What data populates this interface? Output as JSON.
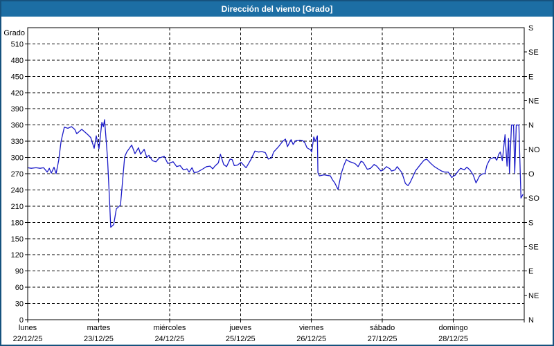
{
  "title": "Dirección del viento [Grado]",
  "colors": {
    "titlebar": "#1C6EA4",
    "window_border": "#16527E",
    "line": "#1A1AC8",
    "grid": "#000000",
    "background": "#FFFFFF",
    "title_text": "#FFFFFF",
    "label_text": "#000000"
  },
  "chart_data": {
    "type": "line",
    "title": "Dirección del viento [Grado]",
    "ylabel": "Grado",
    "ylim": [
      0,
      540
    ],
    "xlim_hours": [
      0,
      168
    ],
    "grid": "dashed",
    "legend": "none",
    "left_axis_ticks": [
      0,
      30,
      60,
      90,
      120,
      150,
      180,
      210,
      240,
      270,
      300,
      330,
      360,
      390,
      420,
      450,
      480,
      510
    ],
    "right_axis_labels": [
      {
        "value": 540,
        "label": "S"
      },
      {
        "value": 495,
        "label": "SE"
      },
      {
        "value": 450,
        "label": "E"
      },
      {
        "value": 405,
        "label": "NE"
      },
      {
        "value": 360,
        "label": "N"
      },
      {
        "value": 315,
        "label": "NO"
      },
      {
        "value": 270,
        "label": "O"
      },
      {
        "value": 225,
        "label": "SO"
      },
      {
        "value": 180,
        "label": "S"
      },
      {
        "value": 135,
        "label": "SE"
      },
      {
        "value": 90,
        "label": "E"
      },
      {
        "value": 45,
        "label": "NE"
      },
      {
        "value": 0,
        "label": "N"
      }
    ],
    "days": [
      {
        "name": "lunes",
        "date": "22/12/25"
      },
      {
        "name": "martes",
        "date": "23/12/25"
      },
      {
        "name": "miércoles",
        "date": "24/12/25"
      },
      {
        "name": "jueves",
        "date": "25/12/25"
      },
      {
        "name": "viernes",
        "date": "26/12/25"
      },
      {
        "name": "sábado",
        "date": "27/12/25"
      },
      {
        "name": "domingo",
        "date": "28/12/25"
      }
    ],
    "series": [
      {
        "name": "Dirección del viento",
        "color": "#1A1AC8",
        "points": [
          [
            0,
            281
          ],
          [
            1.2,
            280
          ],
          [
            2.8,
            281
          ],
          [
            4.2,
            280
          ],
          [
            5.4,
            281
          ],
          [
            6.6,
            273
          ],
          [
            7.3,
            280
          ],
          [
            8,
            271
          ],
          [
            8.9,
            282
          ],
          [
            9.6,
            270
          ],
          [
            10.5,
            295
          ],
          [
            11.3,
            330
          ],
          [
            12.4,
            356
          ],
          [
            13.6,
            354
          ],
          [
            14.8,
            357
          ],
          [
            15.9,
            352
          ],
          [
            16.6,
            344
          ],
          [
            18.3,
            352
          ],
          [
            20.2,
            343
          ],
          [
            21.3,
            337
          ],
          [
            22.5,
            317
          ],
          [
            23.2,
            340
          ],
          [
            24.1,
            316
          ],
          [
            25.1,
            365
          ],
          [
            25.6,
            357
          ],
          [
            26,
            370
          ],
          [
            27,
            300
          ],
          [
            27.7,
            220
          ],
          [
            28.1,
            171
          ],
          [
            29.1,
            176
          ],
          [
            30,
            205
          ],
          [
            31.4,
            212
          ],
          [
            32.8,
            301
          ],
          [
            33.5,
            310
          ],
          [
            35.2,
            323
          ],
          [
            36.3,
            307
          ],
          [
            37.5,
            318
          ],
          [
            38.2,
            306
          ],
          [
            39.4,
            315
          ],
          [
            40.3,
            300
          ],
          [
            41,
            304
          ],
          [
            42.2,
            294
          ],
          [
            43.4,
            292
          ],
          [
            44.5,
            299
          ],
          [
            46.2,
            302
          ],
          [
            47.4,
            289
          ],
          [
            48.1,
            290
          ],
          [
            49.2,
            292
          ],
          [
            50.4,
            283
          ],
          [
            51.6,
            285
          ],
          [
            52.7,
            277
          ],
          [
            53.9,
            279
          ],
          [
            54.6,
            273
          ],
          [
            55.6,
            281
          ],
          [
            56.3,
            272
          ],
          [
            57.4,
            273
          ],
          [
            59.3,
            279
          ],
          [
            60.5,
            283
          ],
          [
            61.7,
            284
          ],
          [
            62.6,
            279
          ],
          [
            63.3,
            284
          ],
          [
            64.5,
            290
          ],
          [
            65.2,
            306
          ],
          [
            66.3,
            287
          ],
          [
            67.3,
            283
          ],
          [
            68.5,
            297
          ],
          [
            69.2,
            296
          ],
          [
            69.9,
            285
          ],
          [
            71,
            286
          ],
          [
            72.2,
            291
          ],
          [
            73.2,
            285
          ],
          [
            73.9,
            281
          ],
          [
            75.5,
            296
          ],
          [
            76.9,
            312
          ],
          [
            78.1,
            310
          ],
          [
            79.2,
            311
          ],
          [
            80.4,
            309
          ],
          [
            81.4,
            297
          ],
          [
            82.5,
            299
          ],
          [
            83.2,
            310
          ],
          [
            84.9,
            320
          ],
          [
            86.3,
            330
          ],
          [
            87.2,
            334
          ],
          [
            87.9,
            320
          ],
          [
            89.1,
            333
          ],
          [
            89.8,
            324
          ],
          [
            90.7,
            331
          ],
          [
            92.1,
            332
          ],
          [
            93.1,
            331
          ],
          [
            93.8,
            327
          ],
          [
            94.5,
            318
          ],
          [
            95.7,
            314
          ],
          [
            96.1,
            310
          ],
          [
            96.8,
            338
          ],
          [
            97.3,
            330
          ],
          [
            98,
            340
          ],
          [
            98.2,
            272
          ],
          [
            98.7,
            266
          ],
          [
            100.3,
            268
          ],
          [
            101.2,
            267
          ],
          [
            102.4,
            266
          ],
          [
            103.1,
            259
          ],
          [
            103.9,
            253
          ],
          [
            105,
            241
          ],
          [
            105.5,
            255
          ],
          [
            106.2,
            272
          ],
          [
            107.1,
            287
          ],
          [
            107.8,
            296
          ],
          [
            109,
            292
          ],
          [
            110.2,
            290
          ],
          [
            110.9,
            288
          ],
          [
            111.8,
            283
          ],
          [
            112.8,
            293
          ],
          [
            113.5,
            291
          ],
          [
            114.9,
            278
          ],
          [
            116,
            280
          ],
          [
            117.2,
            287
          ],
          [
            118.1,
            284
          ],
          [
            119.5,
            275
          ],
          [
            120.3,
            277
          ],
          [
            121.4,
            283
          ],
          [
            122.6,
            279
          ],
          [
            123.1,
            275
          ],
          [
            124.3,
            277
          ],
          [
            125,
            283
          ],
          [
            126.6,
            272
          ],
          [
            127.8,
            252
          ],
          [
            128.7,
            248
          ],
          [
            129.4,
            254
          ],
          [
            131.3,
            276
          ],
          [
            132.9,
            287
          ],
          [
            134.1,
            295
          ],
          [
            135,
            297
          ],
          [
            136.4,
            289
          ],
          [
            137.6,
            283
          ],
          [
            138.8,
            279
          ],
          [
            140,
            275
          ],
          [
            141.1,
            273
          ],
          [
            142.3,
            273
          ],
          [
            143.5,
            263
          ],
          [
            144.2,
            266
          ],
          [
            144.6,
            267
          ],
          [
            145.8,
            276
          ],
          [
            146.5,
            280
          ],
          [
            147.7,
            277
          ],
          [
            148.6,
            282
          ],
          [
            149.6,
            277
          ],
          [
            150.7,
            268
          ],
          [
            151.7,
            253
          ],
          [
            152.9,
            266
          ],
          [
            154,
            270
          ],
          [
            154.7,
            270
          ],
          [
            155.4,
            286
          ],
          [
            156.4,
            297
          ],
          [
            157.3,
            299
          ],
          [
            158,
            300
          ],
          [
            158.7,
            295
          ],
          [
            159.4,
            306
          ],
          [
            159.9,
            310
          ],
          [
            160.6,
            294
          ],
          [
            161.5,
            342
          ],
          [
            162.2,
            284
          ],
          [
            162.7,
            335
          ],
          [
            163,
            271
          ],
          [
            163.7,
            360
          ],
          [
            164.4,
            360
          ],
          [
            164.8,
            271
          ],
          [
            165.3,
            360
          ],
          [
            166.2,
            360
          ],
          [
            166.9,
            225
          ],
          [
            167.6,
            232
          ]
        ]
      }
    ]
  }
}
